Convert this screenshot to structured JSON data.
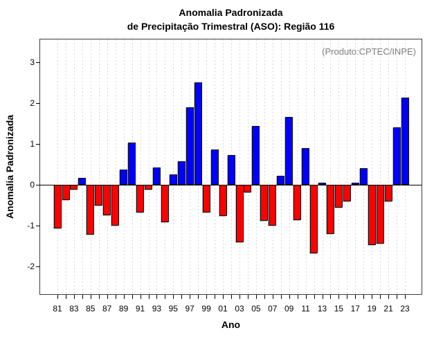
{
  "title": {
    "line1": "Anomalia Padronizada",
    "line2": "de Precipitação Trimestral (ASO): Região 116"
  },
  "annotation": "(Produto:CPTEC/INPE)",
  "chart_data": {
    "type": "bar",
    "title": "Anomalia Padronizada de Precipitação Trimestral (ASO): Região 116",
    "xlabel": "Ano",
    "ylabel": "Anomalia Padronizada",
    "annotation": "(Produto:CPTEC/INPE)",
    "categories": [
      "81",
      "82",
      "83",
      "84",
      "85",
      "86",
      "87",
      "88",
      "89",
      "90",
      "91",
      "92",
      "93",
      "94",
      "95",
      "96",
      "97",
      "98",
      "99",
      "00",
      "01",
      "02",
      "03",
      "04",
      "05",
      "06",
      "07",
      "08",
      "09",
      "10",
      "11",
      "12",
      "13",
      "14",
      "15",
      "16",
      "17",
      "18",
      "19",
      "20",
      "21",
      "22",
      "23"
    ],
    "values": [
      -1.06,
      -0.37,
      -0.12,
      0.17,
      -1.22,
      -0.51,
      -0.74,
      -0.99,
      0.37,
      1.04,
      -0.68,
      -0.12,
      0.43,
      -0.91,
      0.26,
      0.58,
      1.9,
      2.51,
      -0.67,
      0.87,
      -0.76,
      0.73,
      -1.41,
      -0.19,
      1.43,
      -0.88,
      -0.99,
      0.22,
      1.65,
      -0.86,
      0.89,
      -1.68,
      0.06,
      -1.2,
      -0.55,
      -0.4,
      0.05,
      0.41,
      -1.47,
      -1.44,
      -0.41,
      1.41,
      2.13
    ],
    "x_tick_labels": [
      "81",
      "83",
      "85",
      "87",
      "89",
      "91",
      "93",
      "95",
      "97",
      "99",
      "01",
      "03",
      "05",
      "07",
      "09",
      "11",
      "13",
      "15",
      "17",
      "19",
      "21",
      "23"
    ],
    "yticks": [
      3,
      2,
      1,
      0,
      -1,
      -2
    ],
    "ylim": [
      -2.67,
      3.55
    ],
    "grid": "vertical-dashed",
    "legend": "none",
    "colors": {
      "positive_bar": "#0000FF",
      "negative_bar": "#FF0000",
      "bar_border": "#101010",
      "annotation_text": "#7e7e7e",
      "grid_line": "#d6d6d6",
      "axis": "#000000"
    }
  }
}
